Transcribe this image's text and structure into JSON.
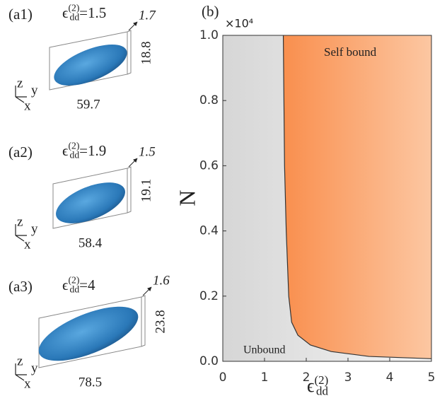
{
  "chart_data": {
    "type": "phase",
    "panel_label": "(b)",
    "x_label": {
      "symbol": "ϵ",
      "sub": "dd",
      "sup": "(2)"
    },
    "y_label": "N",
    "y_scale_label": "×10⁴",
    "xlim": [
      0,
      5
    ],
    "ylim": [
      0,
      1.0
    ],
    "xticks": [
      0,
      1,
      2,
      3,
      4,
      5
    ],
    "yticks": [
      {
        "value": 0,
        "label": "0.0"
      },
      0.2,
      0.4,
      0.6,
      0.8,
      {
        "value": 1,
        "label": "1.0"
      }
    ],
    "regions": [
      {
        "name": "Unbound",
        "colors": [
          "#d6d6d6",
          "#f5f5f5"
        ]
      },
      {
        "name": "Self bound",
        "colors": [
          "#f98f4e",
          "#fcc7a2"
        ]
      }
    ],
    "boundary": {
      "x": [
        1.45,
        1.48,
        1.52,
        1.58,
        1.65,
        1.8,
        2.1,
        2.6,
        3.5,
        5
      ],
      "values": [
        1.0,
        0.6,
        0.4,
        0.2,
        0.12,
        0.08,
        0.05,
        0.03,
        0.015,
        0.008
      ],
      "color": "#333333"
    }
  },
  "insets": [
    {
      "label": "(a1)",
      "symbol": "ϵ",
      "sub": "dd",
      "sup": "(2)",
      "value_text": "=1.5",
      "depth": 1.7,
      "height": 18.8,
      "width": 59.7,
      "axes": [
        "z",
        "y",
        "x"
      ]
    },
    {
      "label": "(a2)",
      "symbol": "ϵ",
      "sub": "dd",
      "sup": "(2)",
      "value_text": "=1.9",
      "depth": 1.5,
      "height": 19.1,
      "width": 58.4,
      "axes": [
        "z",
        "y",
        "x"
      ]
    },
    {
      "label": "(a3)",
      "symbol": "ϵ",
      "sub": "dd",
      "sup": "(2)",
      "value_text": "=4",
      "depth": 1.6,
      "height": 23.8,
      "width": 78.5,
      "axes": [
        "z",
        "y",
        "x"
      ]
    }
  ]
}
